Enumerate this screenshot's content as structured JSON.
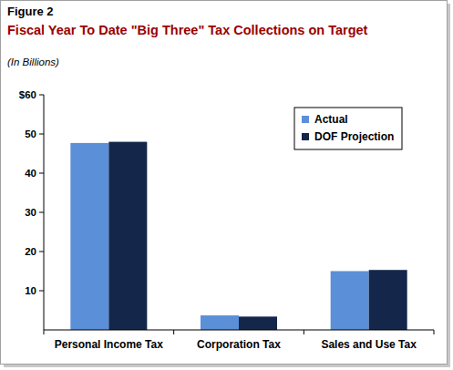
{
  "chart_data": {
    "type": "bar",
    "title": "Figure 2",
    "subtitle": "Fiscal Year To Date \"Big Three\" Tax Collections on Target",
    "y_label": "(In Billions)",
    "categories": [
      "Personal Income Tax",
      "Corporation Tax",
      "Sales and Use Tax"
    ],
    "series": [
      {
        "name": "Actual",
        "color": "#5b8fd8",
        "values": [
          47.7,
          3.7,
          15.0
        ]
      },
      {
        "name": "DOF Projection",
        "color": "#14274a",
        "values": [
          48.0,
          3.4,
          15.3
        ]
      }
    ],
    "ylim": [
      0,
      60
    ],
    "yticks": [
      10,
      20,
      30,
      40,
      50,
      {
        "value": 60,
        "label": "$60"
      }
    ],
    "grid": false,
    "legend": "top-right"
  }
}
